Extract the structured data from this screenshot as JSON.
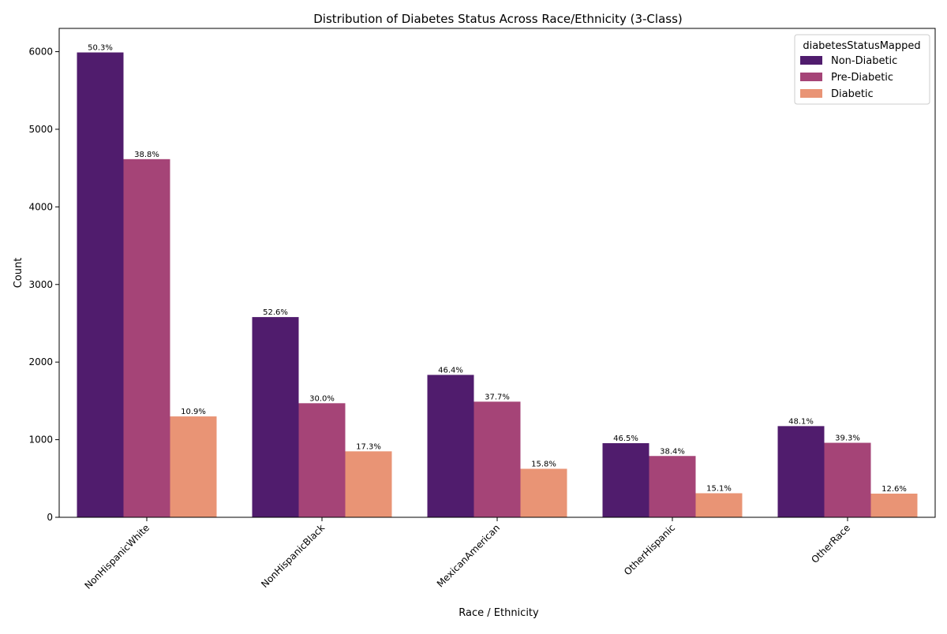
{
  "chart_data": {
    "type": "bar",
    "title": "Distribution of Diabetes Status Across Race/Ethnicity (3-Class)",
    "xlabel": "Race / Ethnicity",
    "ylabel": "Count",
    "ylim": [
      0,
      6300
    ],
    "yticks": [
      0,
      1000,
      2000,
      3000,
      4000,
      5000,
      6000
    ],
    "grid": false,
    "legend_title": "diabetesStatusMapped",
    "legend_position": "top-right",
    "categories": [
      "NonHispanicWhite",
      "NonHispanicBlack",
      "MexicanAmerican",
      "OtherHispanic",
      "OtherRace"
    ],
    "series": [
      {
        "name": "Non-Diabetic",
        "color": "#501c6d",
        "values": [
          5990,
          2580,
          1835,
          955,
          1175
        ],
        "labels": [
          "50.3%",
          "52.6%",
          "46.4%",
          "46.5%",
          "48.1%"
        ]
      },
      {
        "name": "Pre-Diabetic",
        "color": "#a54477",
        "values": [
          4615,
          1470,
          1490,
          790,
          960
        ],
        "labels": [
          "38.8%",
          "30.0%",
          "37.7%",
          "38.4%",
          "39.3%"
        ]
      },
      {
        "name": "Diabetic",
        "color": "#e99475",
        "values": [
          1300,
          850,
          625,
          310,
          305
        ],
        "labels": [
          "10.9%",
          "17.3%",
          "15.8%",
          "15.1%",
          "12.6%"
        ]
      }
    ]
  }
}
